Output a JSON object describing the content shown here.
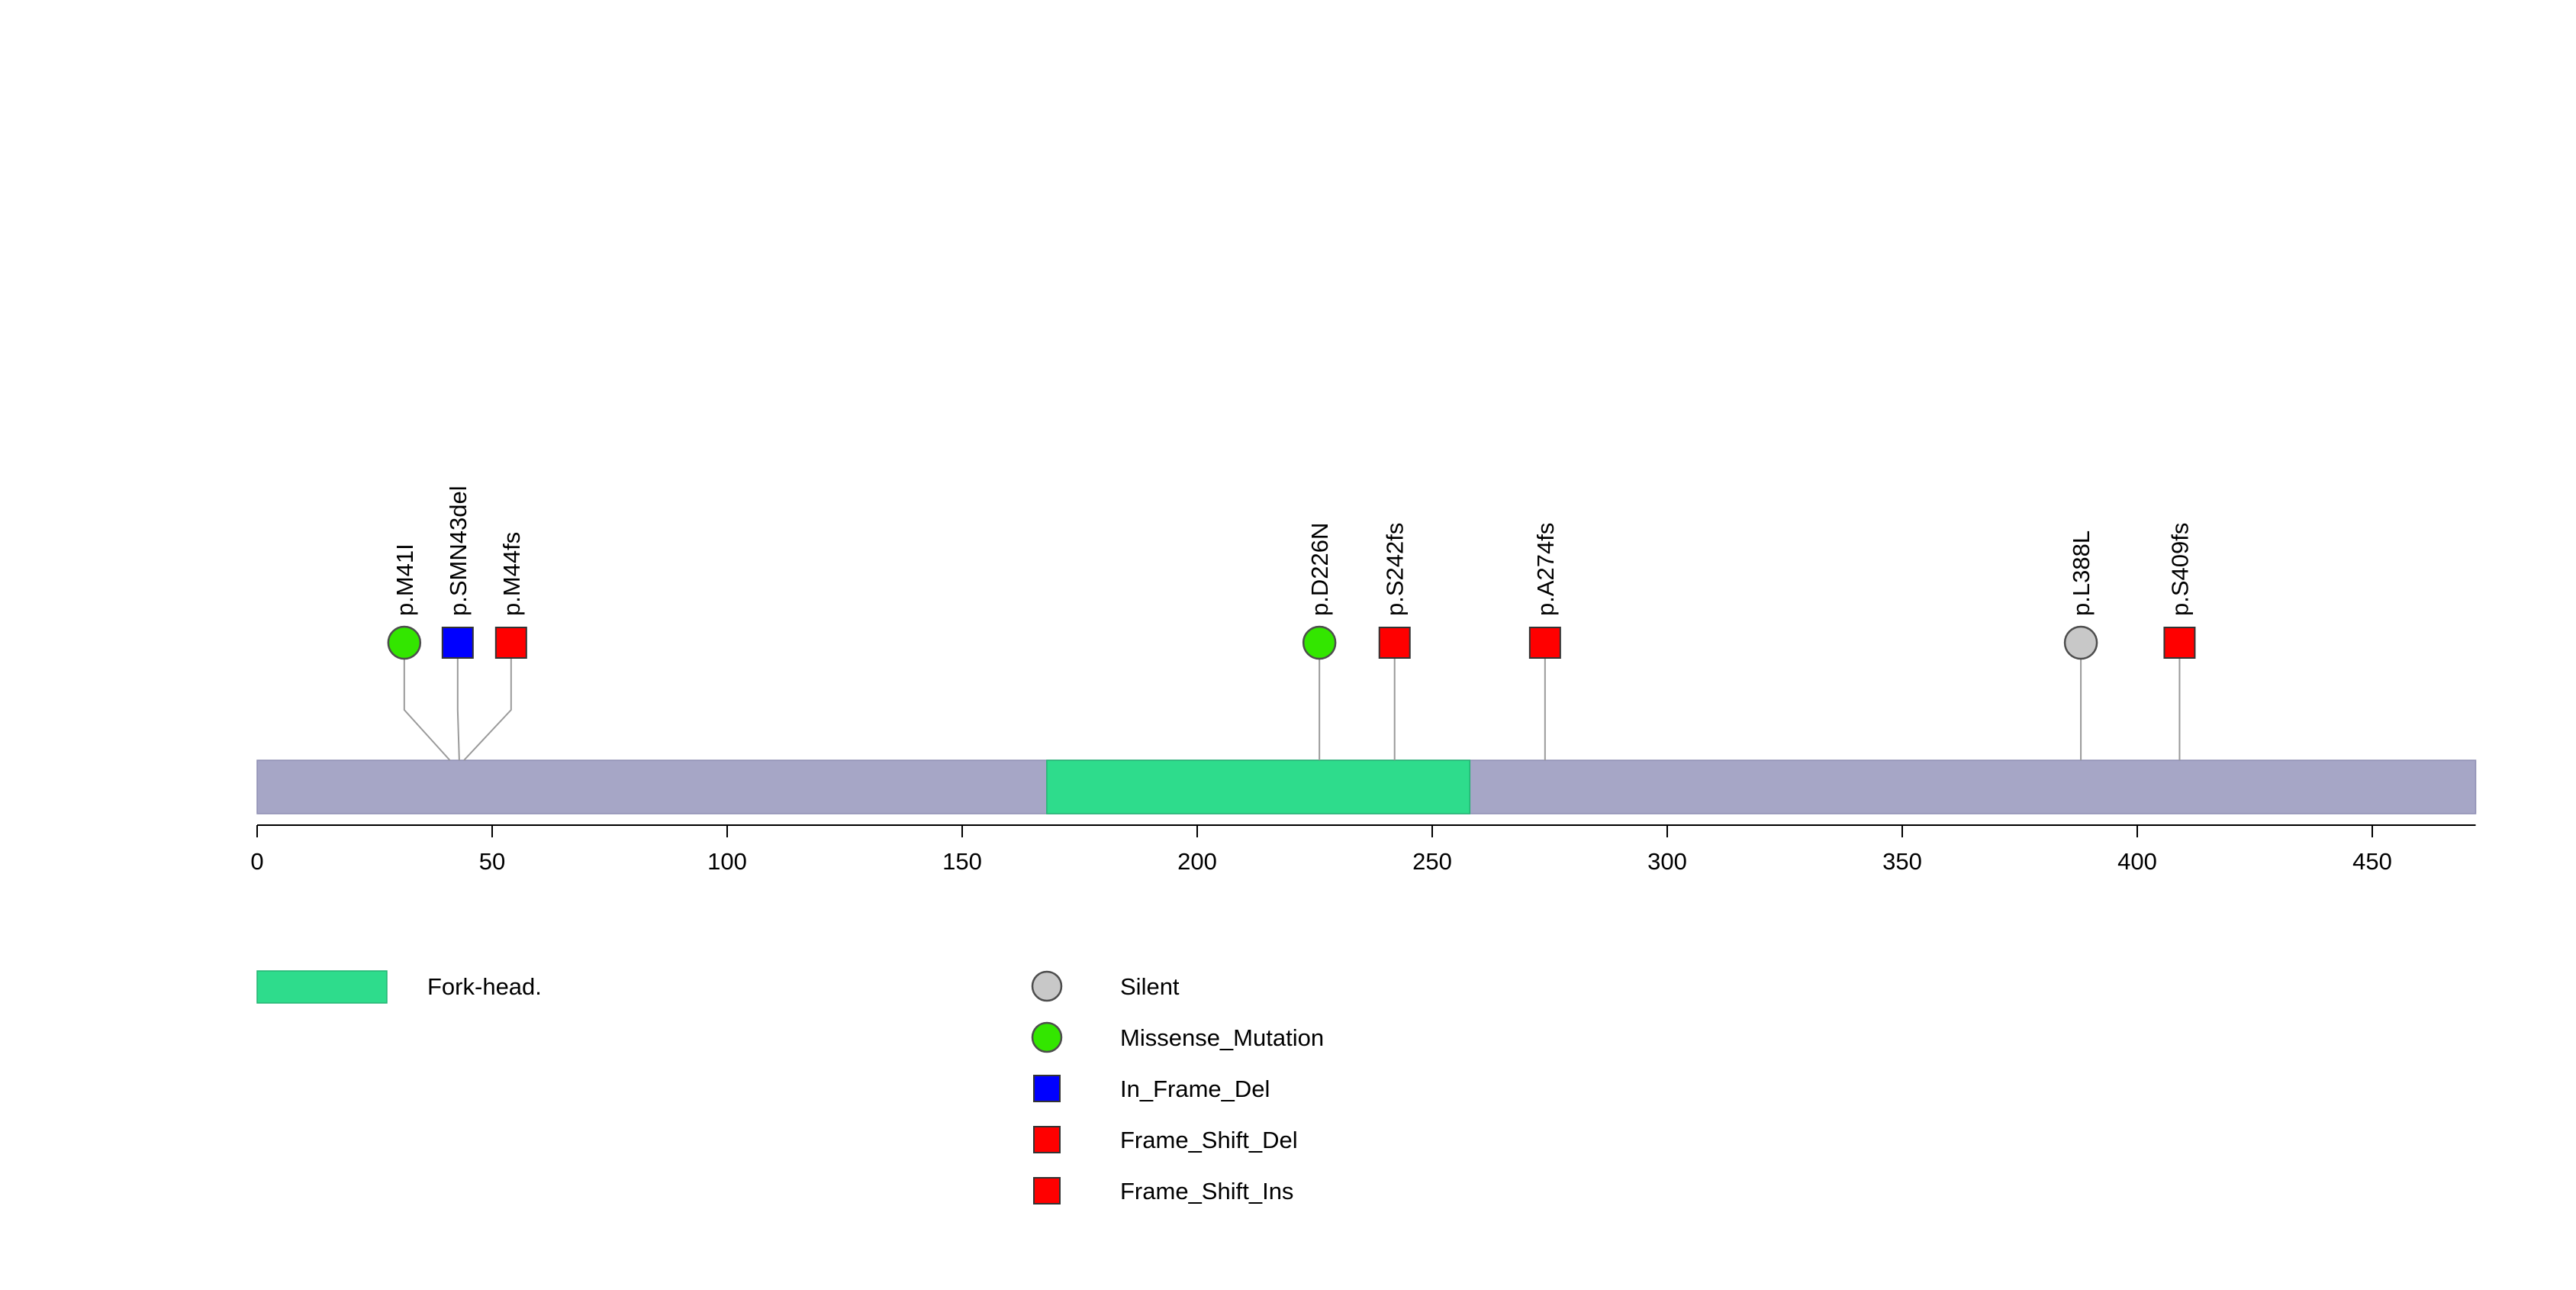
{
  "chart_data": {
    "type": "lollipop",
    "title": "",
    "protein_length": 472,
    "x_axis": {
      "min": 0,
      "max": 472,
      "ticks": [
        0,
        50,
        100,
        150,
        200,
        250,
        300,
        350,
        400,
        450
      ]
    },
    "backbone_color": "#a6a6c6",
    "domains": [
      {
        "name": "Fork-head.",
        "start": 168,
        "end": 258,
        "color": "#2edc8c"
      }
    ],
    "mutation_types": {
      "Silent": {
        "shape": "circle",
        "color": "#c8c8c8"
      },
      "Missense_Mutation": {
        "shape": "circle",
        "color": "#33e600"
      },
      "In_Frame_Del": {
        "shape": "square",
        "color": "#0000ff"
      },
      "Frame_Shift_Del": {
        "shape": "square",
        "color": "#ff0000"
      },
      "Frame_Shift_Ins": {
        "shape": "square",
        "color": "#ff0000"
      }
    },
    "mutations": [
      {
        "label": "p.M41I",
        "position": 41,
        "type": "Missense_Mutation"
      },
      {
        "label": "p.SMN43del",
        "position": 43,
        "type": "In_Frame_Del"
      },
      {
        "label": "p.M44fs",
        "position": 44,
        "type": "Frame_Shift_Ins"
      },
      {
        "label": "p.D226N",
        "position": 226,
        "type": "Missense_Mutation"
      },
      {
        "label": "p.S242fs",
        "position": 242,
        "type": "Frame_Shift_Del"
      },
      {
        "label": "p.A274fs",
        "position": 274,
        "type": "Frame_Shift_Del"
      },
      {
        "label": "p.L388L",
        "position": 388,
        "type": "Silent"
      },
      {
        "label": "p.S409fs",
        "position": 409,
        "type": "Frame_Shift_Ins"
      }
    ],
    "legend": {
      "domains": [
        {
          "label": "Fork-head.",
          "color": "#2edc8c"
        }
      ],
      "mutation_types": [
        {
          "label": "Silent",
          "shape": "circle",
          "color": "#c8c8c8"
        },
        {
          "label": "Missense_Mutation",
          "shape": "circle",
          "color": "#33e600"
        },
        {
          "label": "In_Frame_Del",
          "shape": "square",
          "color": "#0000ff"
        },
        {
          "label": "Frame_Shift_Del",
          "shape": "square",
          "color": "#ff0000"
        },
        {
          "label": "Frame_Shift_Ins",
          "shape": "square",
          "color": "#ff0000"
        }
      ]
    }
  }
}
